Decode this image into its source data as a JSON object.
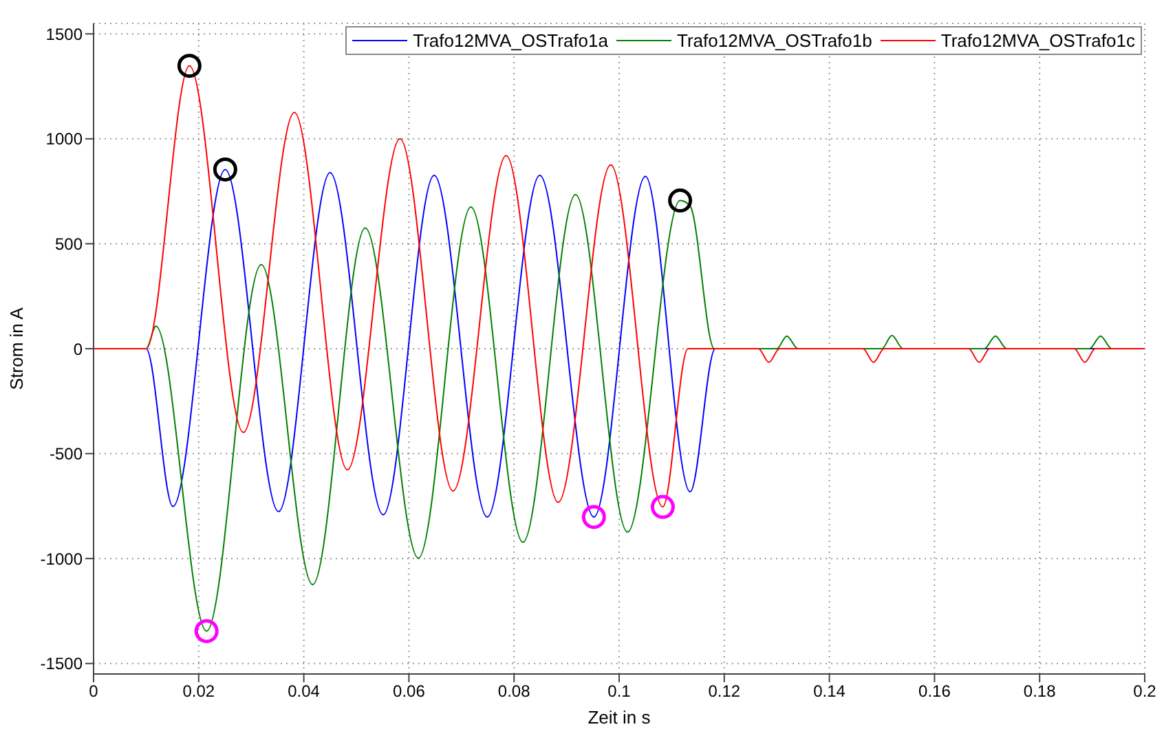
{
  "chart_data": {
    "type": "line",
    "xlabel": "Zeit in s",
    "ylabel": "Strom in A",
    "xlim": [
      0,
      0.2
    ],
    "ylim": [
      -1550,
      1550
    ],
    "xticks": [
      0,
      0.02,
      0.04,
      0.06,
      0.08,
      0.1,
      0.12,
      0.14,
      0.16,
      0.18,
      0.2
    ],
    "yticks": [
      -1500,
      -1000,
      -500,
      0,
      500,
      1000,
      1500
    ],
    "grid": true,
    "legend": "top right",
    "marker": "none",
    "series": [
      {
        "name": "Trafo12MVA_OSTrafo1a",
        "color": "#0000ff",
        "x": [
          0,
          0.01,
          0.0151,
          0.02505,
          0.0352,
          0.045,
          0.0551,
          0.0648,
          0.0749,
          0.0849,
          0.0952,
          0.105,
          0.1135,
          0.1183,
          0.13,
          0.15,
          0.17,
          0.2
        ],
        "values": [
          0,
          0,
          -752,
          854,
          -776,
          839,
          -791,
          826,
          -802,
          826,
          -802,
          821,
          -682,
          0,
          0,
          0,
          0,
          0
        ]
      },
      {
        "name": "Trafo12MVA_OSTrafo1b",
        "color": "#008000",
        "x": [
          0,
          0.01,
          0.01187,
          0.0215,
          0.0319,
          0.0417,
          0.0517,
          0.0618,
          0.0718,
          0.0817,
          0.0917,
          0.1016,
          0.1116,
          0.1135,
          0.1181,
          0.13,
          0.1319,
          0.134,
          0.15,
          0.1519,
          0.154,
          0.1695,
          0.1716,
          0.1737,
          0.1895,
          0.1916,
          0.1937,
          0.2
        ],
        "values": [
          0,
          0,
          107,
          -1346,
          401,
          -1124,
          575,
          -998,
          675,
          -922,
          734,
          -874,
          706,
          680,
          0,
          0,
          60,
          0,
          0,
          63,
          0,
          0,
          60,
          0,
          0,
          60,
          0,
          0
        ]
      },
      {
        "name": "Trafo12MVA_OSTrafo1c",
        "color": "#ff0000",
        "x": [
          0,
          0.01,
          0.01824,
          0.0285,
          0.0382,
          0.0483,
          0.0583,
          0.0684,
          0.0785,
          0.0884,
          0.0984,
          0.1083,
          0.1131,
          0.1265,
          0.1285,
          0.1305,
          0.1464,
          0.1484,
          0.1504,
          0.1665,
          0.1685,
          0.1705,
          0.1866,
          0.1886,
          0.1906,
          0.2
        ],
        "values": [
          0,
          0,
          1348,
          -399,
          1126,
          -577,
          1000,
          -678,
          920,
          -732,
          876,
          -754,
          0,
          0,
          -65,
          0,
          0,
          -65,
          0,
          0,
          -65,
          0,
          0,
          -65,
          0,
          0
        ]
      },
      {
        "type": "scatter",
        "marker": "circle",
        "color": "#000000",
        "x": [
          0.01824,
          0.02505,
          0.1116
        ],
        "values": [
          1348,
          854,
          706
        ]
      },
      {
        "type": "scatter",
        "marker": "circle",
        "color": "#ff00ff",
        "x": [
          0.0215,
          0.0952,
          0.1083
        ],
        "values": [
          -1346,
          -802,
          -754
        ]
      }
    ]
  }
}
